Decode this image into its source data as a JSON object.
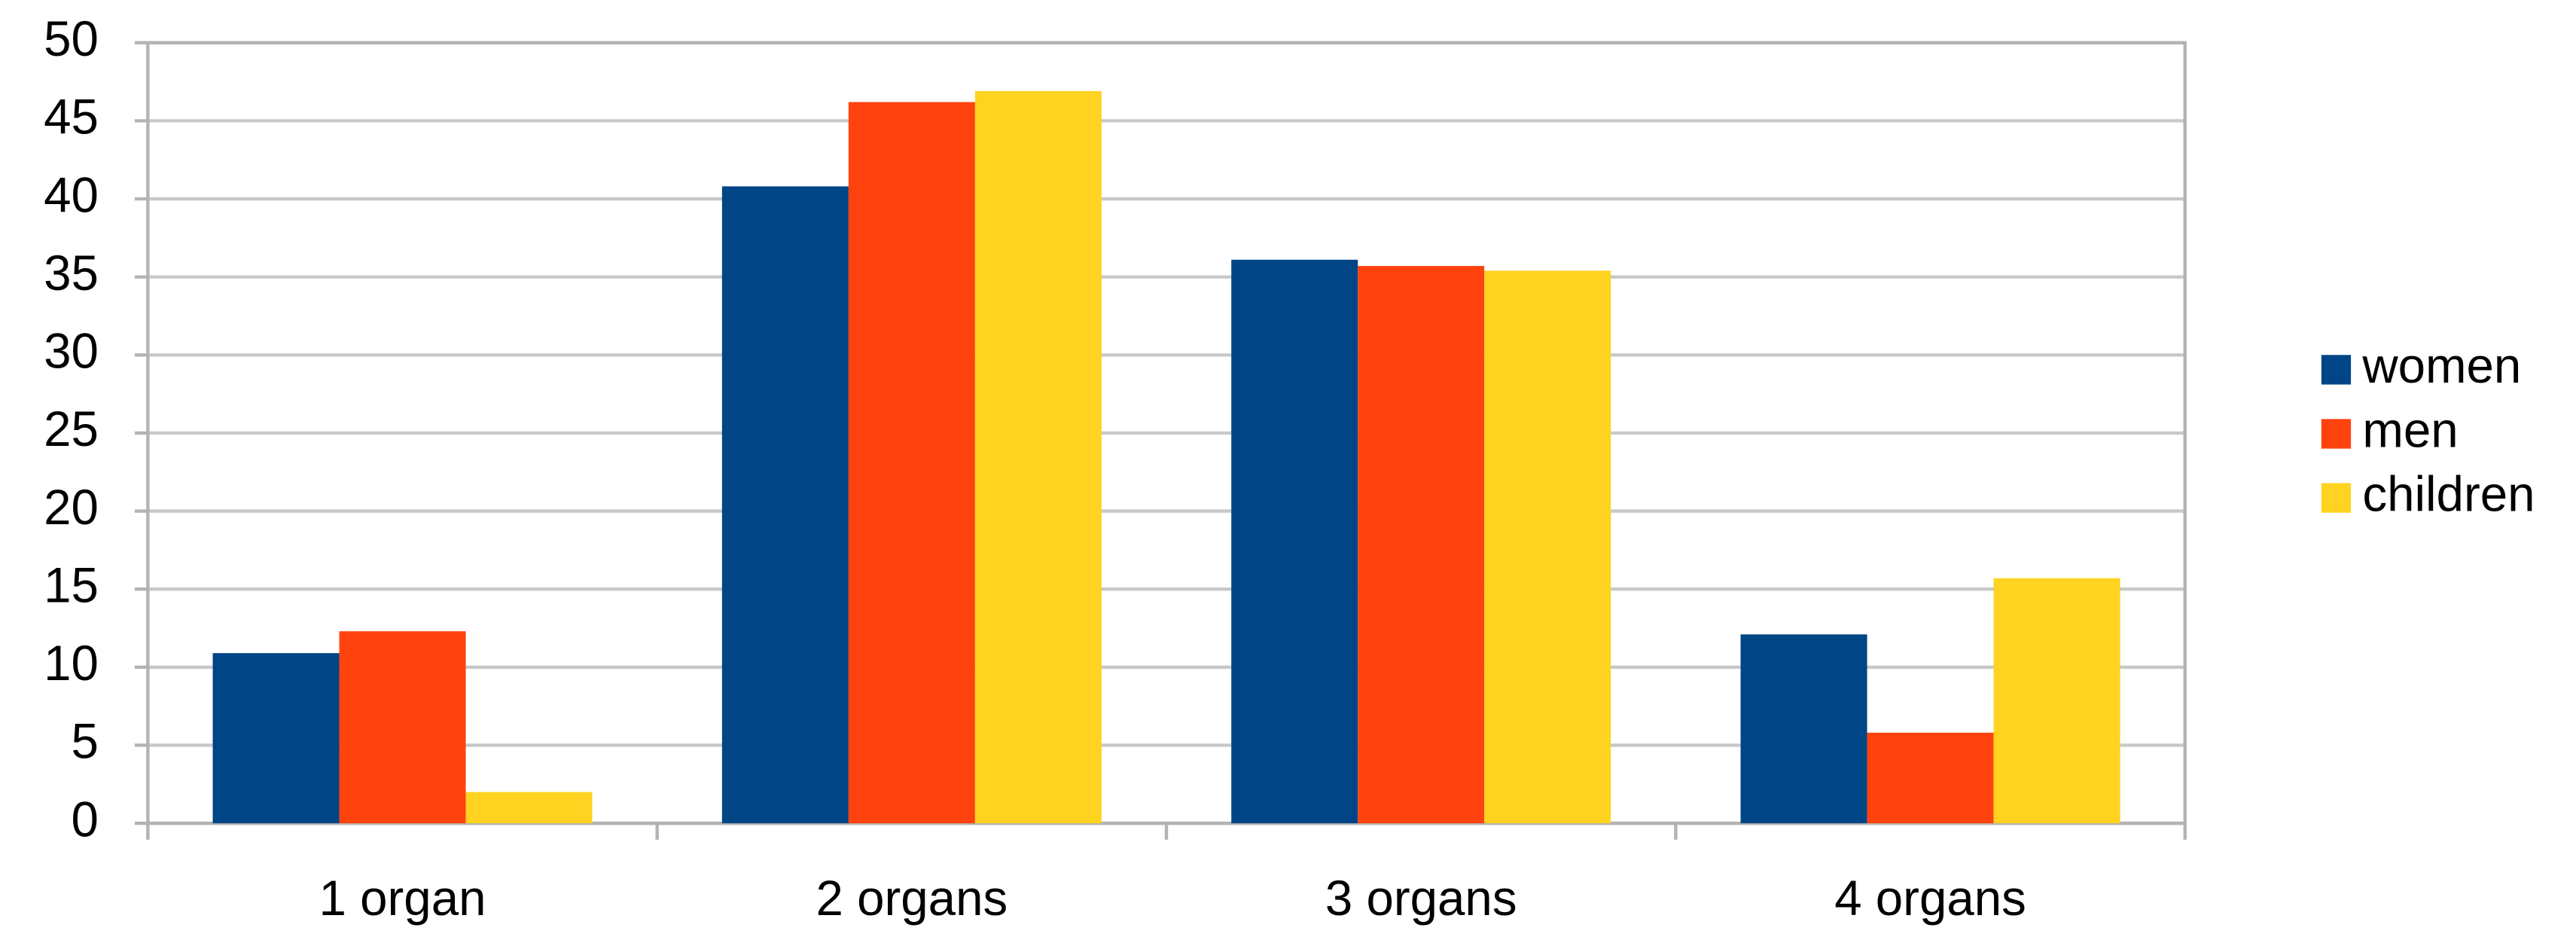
{
  "chart_data": {
    "type": "bar",
    "categories": [
      "1 organ",
      "2 organs",
      "3 organs",
      "4 organs"
    ],
    "series": [
      {
        "name": "women",
        "color": "#004586",
        "values": [
          10.9,
          40.8,
          36.1,
          12.1
        ]
      },
      {
        "name": "men",
        "color": "#ff420e",
        "values": [
          12.3,
          46.2,
          35.7,
          5.8
        ]
      },
      {
        "name": "children",
        "color": "#ffd320",
        "values": [
          2.0,
          46.9,
          35.4,
          15.7
        ]
      }
    ],
    "ylim": [
      0,
      50
    ],
    "yticks": [
      0,
      5,
      10,
      15,
      20,
      25,
      30,
      35,
      40,
      45,
      50
    ],
    "grid": true,
    "legend": "right"
  }
}
